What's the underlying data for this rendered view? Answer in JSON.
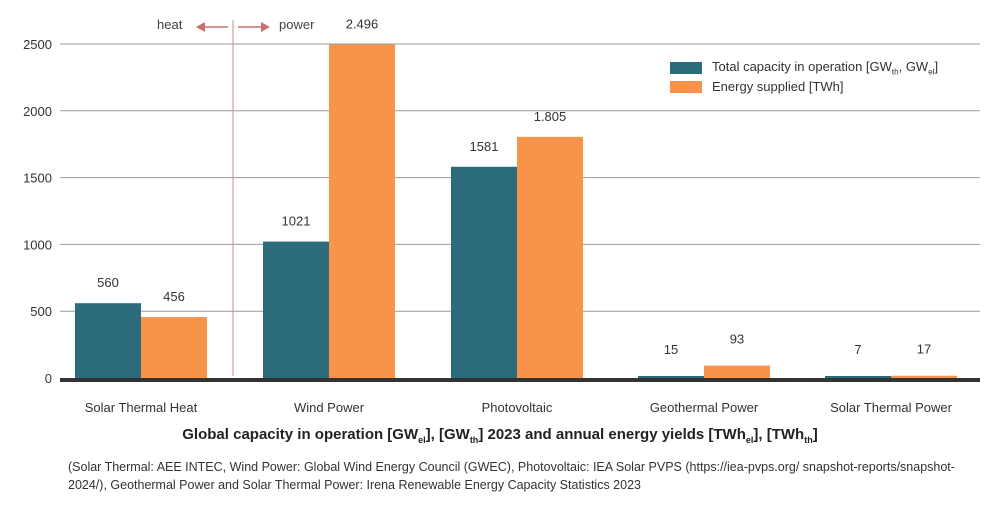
{
  "chart_data": {
    "type": "bar",
    "categories": [
      "Solar Thermal Heat",
      "Wind Power",
      "Photovoltaic",
      "Geothermal Power",
      "Solar Thermal Power"
    ],
    "series": [
      {
        "name": "Total capacity in operation [GWth, GWel]",
        "values": [
          560,
          1021,
          1581,
          15,
          7
        ],
        "labels": [
          "560",
          "1021",
          "1581",
          "15",
          "7"
        ]
      },
      {
        "name": "Energy supplied [TWh]",
        "values": [
          456,
          2496,
          1805,
          93,
          17
        ],
        "labels": [
          "456",
          "2.496",
          "1.805",
          "93",
          "17"
        ]
      }
    ],
    "yticks": [
      "0",
      "500",
      "1000",
      "1500",
      "2000",
      "2500"
    ],
    "ylim": [
      0,
      2600
    ],
    "grid": true,
    "legend_position": "top-right",
    "colors": [
      "#2B6B7B",
      "#F7944A"
    ],
    "annotation": {
      "heat": "heat",
      "power": "power"
    },
    "xlabel": {
      "pre": "Global capacity in operation [GW",
      "sub1": "el",
      "mid1": "], [GW",
      "sub2": "th",
      "mid2": "] 2023 and annual energy yields [TWh",
      "sub3": "el",
      "mid3": "], [TWh",
      "sub4": "th",
      "post": "]"
    },
    "legend": {
      "s1_pre": "Total capacity in operation [GW",
      "s1_sub1": "th",
      "s1_mid": ", GW",
      "s1_sub2": "el",
      "s1_post": "]",
      "s2": "Energy supplied [TWh]"
    },
    "source_text": "(Solar Thermal: AEE INTEC, Wind Power: Global Wind Energy Council (GWEC), Photovoltaic: IEA Solar PVPS (https://iea-pvps.org/ snapshot-reports/snapshot-2024/), Geothermal Power and Solar Thermal Power: Irena Renewable Energy Capacity Statistics 2023"
  }
}
